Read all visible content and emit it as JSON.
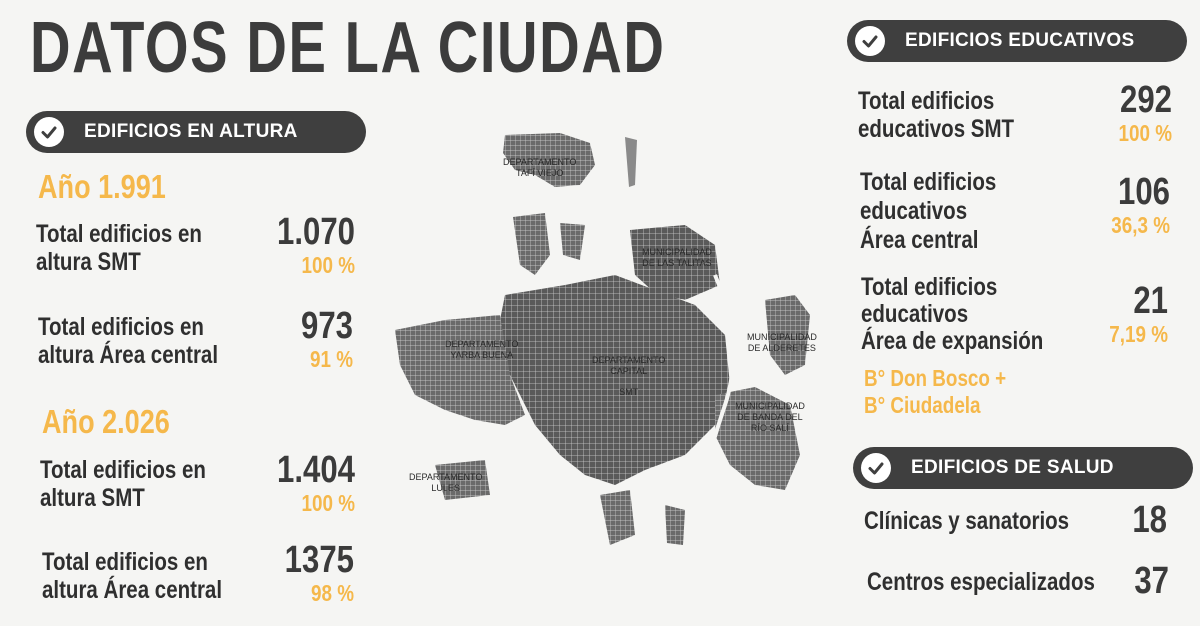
{
  "title": "DATOS DE LA CIUDAD",
  "colors": {
    "accent": "#f5b84b",
    "dark": "#3f3f3f"
  },
  "altura": {
    "header": "EDIFICIOS EN ALTURA",
    "y1": {
      "year": "Año 1.991",
      "rows": [
        {
          "label1": "Total edificios en",
          "label2": "altura SMT",
          "value": "1.070",
          "pct": "100 %"
        },
        {
          "label1": "Total edificios en",
          "label2": "altura Área central",
          "value": "973",
          "pct": "91 %"
        }
      ]
    },
    "y2": {
      "year": "Año 2.026",
      "rows": [
        {
          "label1": "Total edificios en",
          "label2": "altura SMT",
          "value": "1.404",
          "pct": "100 %"
        },
        {
          "label1": "Total edificios en",
          "label2": "altura Área central",
          "value": "1375",
          "pct": "98 %"
        }
      ]
    }
  },
  "map": {
    "labels": {
      "tafi": [
        "DEPARTAMENTO",
        "TAFÍ VIEJO"
      ],
      "talitas": [
        "MUNICIPALIDAD",
        "DE LAS TALITAS"
      ],
      "alderetes": [
        "MUNICIPALIDAD",
        "DE ALDERETES"
      ],
      "yerba": [
        "DEPARTAMENTO",
        "YARBA BUENA"
      ],
      "capital": [
        "DEPARTAMENTO",
        "CAPITAL",
        "SMT"
      ],
      "banda": [
        "MUNICIPALIDAD",
        "DE BANDA DEL",
        "RÍO SALÍ"
      ],
      "lules": [
        "DEPARTAMENTO",
        "LULES"
      ]
    }
  },
  "educativos": {
    "header": "EDIFICIOS EDUCATIVOS",
    "rows": [
      {
        "lines": [
          "Total edificios",
          "educativos SMT"
        ],
        "value": "292",
        "pct": "100 %"
      },
      {
        "lines": [
          "Total edificios",
          "educativos",
          "Área central"
        ],
        "value": "106",
        "pct": "36,3 %"
      },
      {
        "lines": [
          "Total edificios",
          "educativos",
          "Área de expansión"
        ],
        "value": "21",
        "pct": "7,19 %"
      }
    ],
    "note": [
      "B° Don Bosco +",
      "B° Ciudadela"
    ]
  },
  "salud": {
    "header": "EDIFICIOS DE SALUD",
    "rows": [
      {
        "label": "Clínicas y sanatorios",
        "value": "18"
      },
      {
        "label": "Centros especializados",
        "value": "37"
      }
    ]
  }
}
